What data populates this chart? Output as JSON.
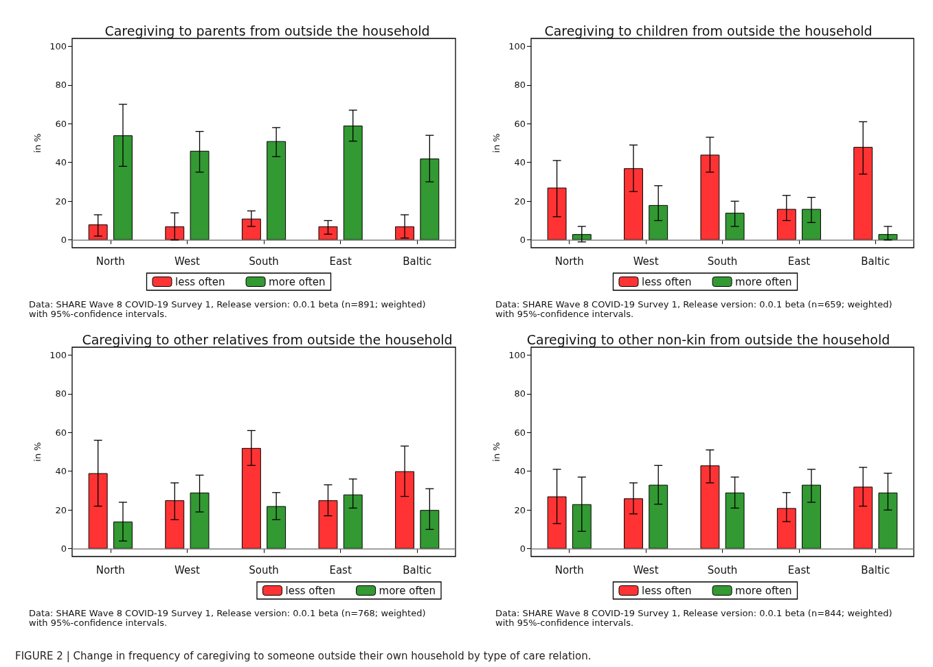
{
  "chart_data": [
    {
      "type": "bar",
      "title": "Caregiving to parents from outside the household",
      "ylabel": "in %",
      "categories": [
        "North",
        "West",
        "South",
        "East",
        "Baltic"
      ],
      "series": [
        {
          "name": "less often",
          "color": "#ff3333",
          "values": [
            8,
            7,
            11,
            7,
            7
          ],
          "errors": [
            [
              2,
              13
            ],
            [
              0,
              14
            ],
            [
              7,
              15
            ],
            [
              3,
              10
            ],
            [
              1,
              13
            ]
          ]
        },
        {
          "name": "more often",
          "color": "#339933",
          "values": [
            54,
            46,
            51,
            59,
            42
          ],
          "errors": [
            [
              38,
              70
            ],
            [
              35,
              56
            ],
            [
              43,
              58
            ],
            [
              51,
              67
            ],
            [
              30,
              54
            ]
          ]
        }
      ],
      "ylim": [
        -4,
        104
      ],
      "yticks": [
        0,
        20,
        40,
        60,
        80,
        100
      ],
      "ref_lines": [
        {
          "axis": "y",
          "value": 0,
          "color": "#7f7f7f"
        }
      ],
      "legend": "bottom",
      "grid": false,
      "annotations": [
        "Data: SHARE Wave 8 COVID-19 Survey 1, Release version: 0.0.1 beta (n=891; weighted)\nwith 95%-confidence intervals."
      ]
    },
    {
      "type": "bar",
      "title": "Caregiving to children from outside the household",
      "ylabel": "in %",
      "categories": [
        "North",
        "West",
        "South",
        "East",
        "Baltic"
      ],
      "series": [
        {
          "name": "less often",
          "color": "#ff3333",
          "values": [
            27,
            37,
            44,
            16,
            48
          ],
          "errors": [
            [
              12,
              41
            ],
            [
              25,
              49
            ],
            [
              35,
              53
            ],
            [
              10,
              23
            ],
            [
              34,
              61
            ]
          ]
        },
        {
          "name": "more often",
          "color": "#339933",
          "values": [
            3,
            18,
            14,
            16,
            3
          ],
          "errors": [
            [
              -1,
              7
            ],
            [
              10,
              28
            ],
            [
              7,
              20
            ],
            [
              9,
              22
            ],
            [
              0,
              7
            ]
          ]
        }
      ],
      "ylim": [
        -4,
        104
      ],
      "yticks": [
        0,
        20,
        40,
        60,
        80,
        100
      ],
      "ref_lines": [
        {
          "axis": "y",
          "value": 0,
          "color": "#7f7f7f"
        }
      ],
      "legend": "bottom",
      "grid": false,
      "annotations": [
        "Data: SHARE Wave 8 COVID-19 Survey 1, Release version: 0.0.1 beta (n=659; weighted)\nwith 95%-confidence intervals."
      ]
    },
    {
      "type": "bar",
      "title": "Caregiving to other relatives from outside the household",
      "ylabel": "in %",
      "categories": [
        "North",
        "West",
        "South",
        "East",
        "Baltic"
      ],
      "series": [
        {
          "name": "less often",
          "color": "#ff3333",
          "values": [
            39,
            25,
            52,
            25,
            40
          ],
          "errors": [
            [
              22,
              56
            ],
            [
              15,
              34
            ],
            [
              43,
              61
            ],
            [
              17,
              33
            ],
            [
              27,
              53
            ]
          ]
        },
        {
          "name": "more often",
          "color": "#339933",
          "values": [
            14,
            29,
            22,
            28,
            20
          ],
          "errors": [
            [
              4,
              24
            ],
            [
              19,
              38
            ],
            [
              15,
              29
            ],
            [
              21,
              36
            ],
            [
              10,
              31
            ]
          ]
        }
      ],
      "ylim": [
        -4,
        104
      ],
      "yticks": [
        0,
        20,
        40,
        60,
        80,
        100
      ],
      "ref_lines": [
        {
          "axis": "y",
          "value": 0,
          "color": "#7f7f7f"
        }
      ],
      "legend": "bottom",
      "grid": false,
      "annotations": [
        "Data: SHARE Wave 8 COVID-19 Survey 1, Release version: 0.0.1 beta (n=768; weighted)\nwith 95%-confidence intervals.",
        "FIGURE 2 | Change in frequency of caregiving to someone outside their own household by type of care relation."
      ]
    },
    {
      "type": "bar",
      "title": "Caregiving to other non-kin from outside the household",
      "ylabel": "in %",
      "categories": [
        "North",
        "West",
        "South",
        "East",
        "Baltic"
      ],
      "series": [
        {
          "name": "less often",
          "color": "#ff3333",
          "values": [
            27,
            26,
            43,
            21,
            32
          ],
          "errors": [
            [
              13,
              41
            ],
            [
              18,
              34
            ],
            [
              34,
              51
            ],
            [
              14,
              29
            ],
            [
              22,
              42
            ]
          ]
        },
        {
          "name": "more often",
          "color": "#339933",
          "values": [
            23,
            33,
            29,
            33,
            29
          ],
          "errors": [
            [
              9,
              37
            ],
            [
              23,
              43
            ],
            [
              21,
              37
            ],
            [
              24,
              41
            ],
            [
              20,
              39
            ]
          ]
        }
      ],
      "ylim": [
        -4,
        104
      ],
      "yticks": [
        0,
        20,
        40,
        60,
        80,
        100
      ],
      "ref_lines": [
        {
          "axis": "y",
          "value": 0,
          "color": "#7f7f7f"
        }
      ],
      "legend": "bottom",
      "grid": false,
      "annotations": [
        "Data: SHARE Wave 8 COVID-19 Survey 1, Release version: 0.0.1 beta (n=844; weighted)\nwith 95%-confidence intervals."
      ]
    }
  ]
}
